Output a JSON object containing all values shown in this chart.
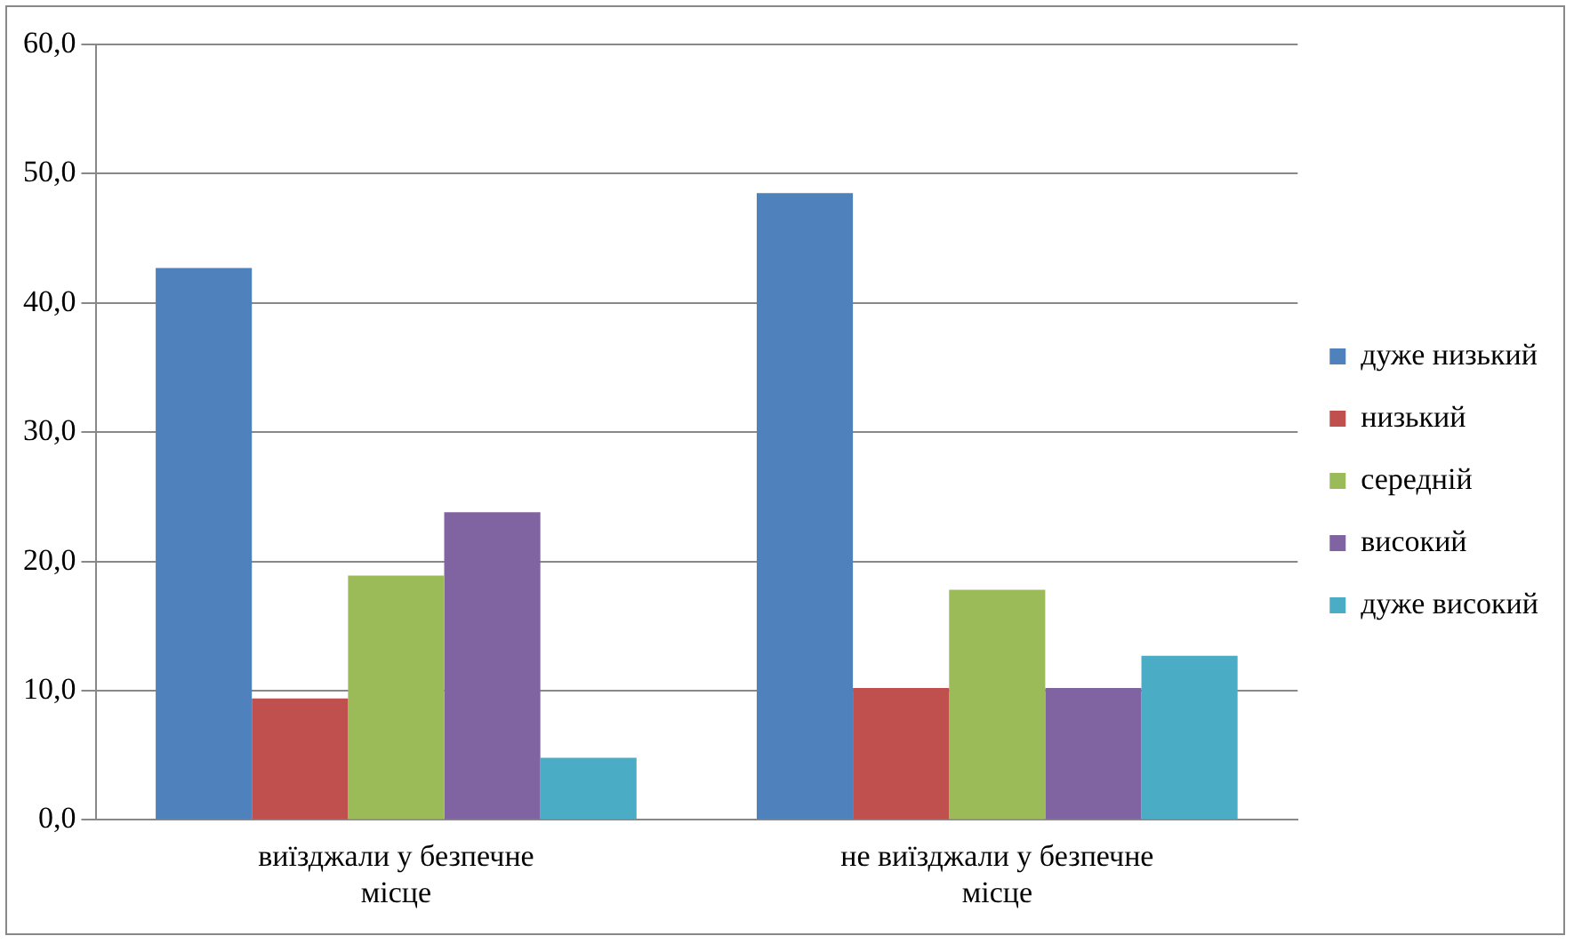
{
  "chart_data": {
    "type": "bar",
    "categories": [
      "виїзджали у безпечне місце",
      "не виїзджали у безпечне місце"
    ],
    "series": [
      {
        "name": "дуже низький",
        "color": "#4f81bd",
        "values": [
          42.7,
          48.5
        ]
      },
      {
        "name": "низький",
        "color": "#c0504d",
        "values": [
          9.4,
          10.2
        ]
      },
      {
        "name": "середній",
        "color": "#9bbb59",
        "values": [
          18.9,
          17.8
        ]
      },
      {
        "name": "високий",
        "color": "#8064a2",
        "values": [
          23.8,
          10.2
        ]
      },
      {
        "name": "дуже високий",
        "color": "#4bacc6",
        "values": [
          4.8,
          12.7
        ]
      }
    ],
    "ylim": [
      0,
      60
    ],
    "yticks": [
      {
        "value": 0,
        "label": "0,0"
      },
      {
        "value": 10,
        "label": "10,0"
      },
      {
        "value": 20,
        "label": "20,0"
      },
      {
        "value": 30,
        "label": "30,0"
      },
      {
        "value": 40,
        "label": "40,0"
      },
      {
        "value": 50,
        "label": "50,0"
      },
      {
        "value": 60,
        "label": "60,0"
      }
    ],
    "grid": "y",
    "legend": "right"
  }
}
